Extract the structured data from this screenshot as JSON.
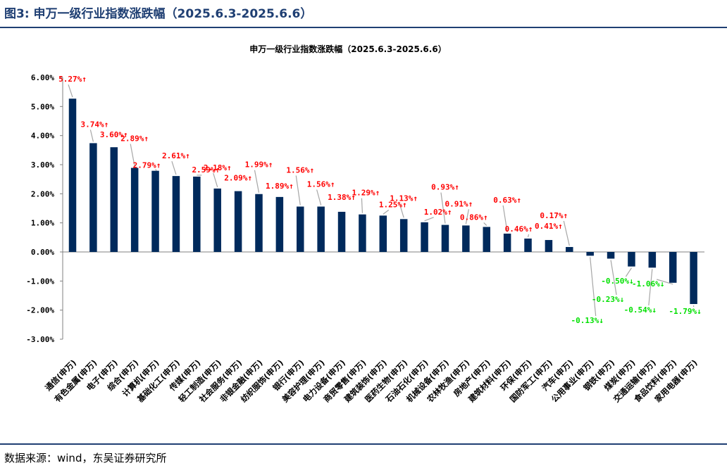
{
  "header": {
    "figure_title": "图3:  申万一级行业指数涨跌幅（2025.6.3-2025.6.6）",
    "source": "数据来源：wind，东吴证券研究所"
  },
  "chart_data": {
    "type": "bar",
    "title": "申万一级行业指数涨跌幅（2025.6.3-2025.6.6）",
    "xlabel": "",
    "ylabel": "",
    "ylim": [
      -3,
      6
    ],
    "yticks": [
      "6.00%",
      "5.00%",
      "4.00%",
      "3.00%",
      "2.00%",
      "1.00%",
      "0.00%",
      "-1.00%",
      "-2.00%",
      "-3.00%"
    ],
    "grid": false,
    "legend": "none",
    "categories": [
      "通信(申万)",
      "有色金属(申万)",
      "电子(申万)",
      "综合(申万)",
      "计算机(申万)",
      "基础化工(申万)",
      "传媒(申万)",
      "轻工制造(申万)",
      "社会服务(申万)",
      "非银金融(申万)",
      "纺织服饰(申万)",
      "银行(申万)",
      "美容护理(申万)",
      "电力设备(申万)",
      "商贸零售(申万)",
      "建筑装饰(申万)",
      "医药生物(申万)",
      "石油石化(申万)",
      "机械设备(申万)",
      "农林牧渔(申万)",
      "房地产(申万)",
      "建筑材料(申万)",
      "环保(申万)",
      "国防军工(申万)",
      "汽车(申万)",
      "公用事业(申万)",
      "钢铁(申万)",
      "煤炭(申万)",
      "交通运输(申万)",
      "食品饮料(申万)",
      "家用电器(申万)"
    ],
    "values": [
      5.27,
      3.74,
      3.6,
      2.89,
      2.79,
      2.61,
      2.59,
      2.18,
      2.09,
      1.99,
      1.89,
      1.56,
      1.56,
      1.38,
      1.29,
      1.25,
      1.13,
      1.02,
      0.93,
      0.91,
      0.86,
      0.63,
      0.46,
      0.41,
      0.17,
      -0.13,
      -0.23,
      -0.5,
      -0.54,
      -1.06,
      -1.79
    ],
    "data_labels": [
      "5.27%↑",
      "3.74%↑",
      "3.60%↑",
      "2.89%↑",
      "2.79%↑",
      "2.61%↑",
      "2.59%↑",
      "2.18%↑",
      "2.09%↑",
      "1.99%↑",
      "1.89%↑",
      "1.56%↑",
      "1.56%↑",
      "1.38%↑",
      "1.29%↑",
      "1.25%↑",
      "1.13%↑",
      "1.02%↑",
      "0.93%↑",
      "0.91%↑",
      "0.86%↑",
      "0.63%↑",
      "0.46%↑",
      "0.41%↑",
      "0.17%↑",
      "-0.13%↓",
      "-0.23%↓",
      "-0.50%↓",
      "-0.54%↓",
      "-1.06%↓",
      "-1.79%↓"
    ],
    "colors": {
      "bar": "#002a5c",
      "positive_label": "#ff0000",
      "negative_label": "#00e000",
      "leader": "#a6a6a6",
      "axis": "#808080"
    }
  }
}
